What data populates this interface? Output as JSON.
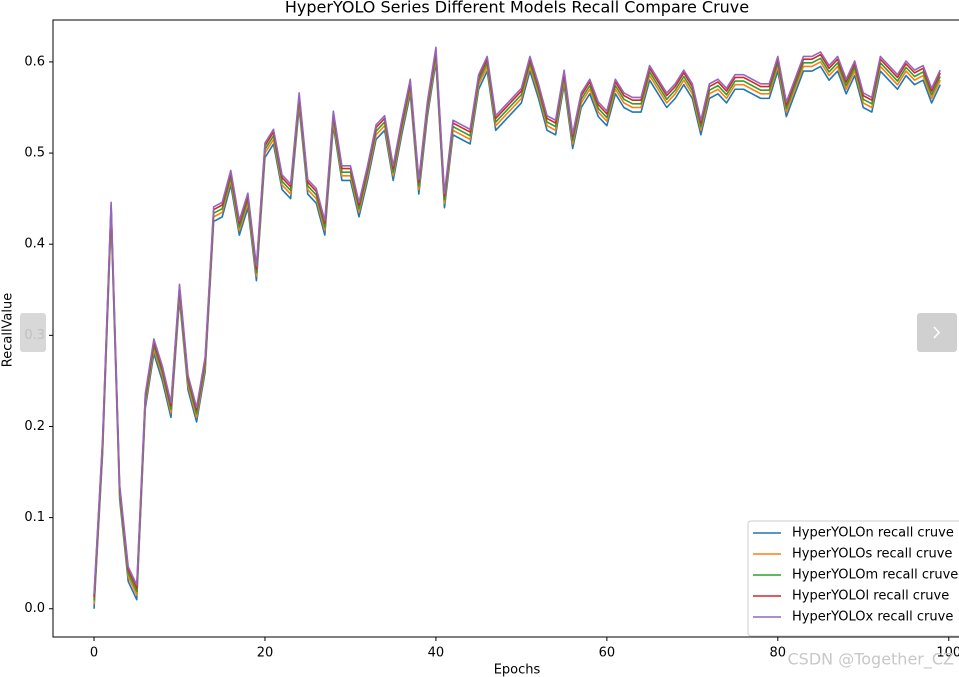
{
  "chart_data": {
    "type": "line",
    "title": "HyperYOLO Series Different Models Recall Compare Cruve",
    "x_label": "Epochs",
    "y_label": "RecallValue",
    "watermark": "CSDN @Together_CZ",
    "legend": "lower right",
    "xlim": [
      -4.8,
      101.2
    ],
    "ylim": [
      -0.031,
      0.646
    ],
    "xticks": [
      0,
      20,
      40,
      60,
      80,
      100
    ],
    "yticks": [
      {
        "value": 0,
        "label": "0.0"
      },
      0.1,
      0.2,
      0.3,
      0.4,
      0.5,
      0.6
    ],
    "x": [
      0,
      1,
      2,
      3,
      4,
      5,
      6,
      7,
      8,
      9,
      10,
      11,
      12,
      13,
      14,
      15,
      16,
      17,
      18,
      19,
      20,
      21,
      22,
      23,
      24,
      25,
      26,
      27,
      28,
      29,
      30,
      31,
      32,
      33,
      34,
      35,
      36,
      37,
      38,
      39,
      40,
      41,
      42,
      43,
      44,
      45,
      46,
      47,
      48,
      49,
      50,
      51,
      52,
      53,
      54,
      55,
      56,
      57,
      58,
      59,
      60,
      61,
      62,
      63,
      64,
      65,
      66,
      67,
      68,
      69,
      70,
      71,
      72,
      73,
      74,
      75,
      76,
      77,
      78,
      79,
      80,
      81,
      82,
      83,
      84,
      85,
      86,
      87,
      88,
      89,
      90,
      91,
      92,
      93,
      94,
      95,
      96,
      97,
      98,
      99
    ],
    "series": [
      {
        "name": "HyperYOLOn recall cruve",
        "color": "#1f77b4",
        "values": [
          0.0,
          0.17,
          0.43,
          0.12,
          0.03,
          0.01,
          0.22,
          0.28,
          0.25,
          0.21,
          0.34,
          0.24,
          0.205,
          0.26,
          0.425,
          0.43,
          0.465,
          0.41,
          0.44,
          0.36,
          0.495,
          0.51,
          0.46,
          0.45,
          0.55,
          0.455,
          0.445,
          0.41,
          0.53,
          0.47,
          0.47,
          0.43,
          0.47,
          0.515,
          0.525,
          0.47,
          0.52,
          0.565,
          0.455,
          0.54,
          0.6,
          0.44,
          0.52,
          0.515,
          0.51,
          0.57,
          0.59,
          0.525,
          0.535,
          0.545,
          0.555,
          0.59,
          0.56,
          0.525,
          0.52,
          0.575,
          0.505,
          0.55,
          0.565,
          0.54,
          0.53,
          0.565,
          0.55,
          0.545,
          0.545,
          0.58,
          0.565,
          0.55,
          0.56,
          0.575,
          0.56,
          0.52,
          0.56,
          0.565,
          0.555,
          0.57,
          0.57,
          0.565,
          0.56,
          0.56,
          0.59,
          0.54,
          0.565,
          0.59,
          0.59,
          0.595,
          0.58,
          0.59,
          0.565,
          0.585,
          0.55,
          0.545,
          0.59,
          0.58,
          0.57,
          0.585,
          0.575,
          0.58,
          0.555,
          0.575
        ]
      },
      {
        "name": "HyperYOLOs recall cruve",
        "color": "#ff7f0e",
        "values": [
          0.005,
          0.175,
          0.435,
          0.125,
          0.035,
          0.015,
          0.225,
          0.285,
          0.255,
          0.215,
          0.345,
          0.245,
          0.21,
          0.265,
          0.43,
          0.435,
          0.47,
          0.415,
          0.445,
          0.365,
          0.5,
          0.515,
          0.465,
          0.455,
          0.555,
          0.46,
          0.45,
          0.415,
          0.535,
          0.475,
          0.475,
          0.435,
          0.475,
          0.52,
          0.53,
          0.475,
          0.525,
          0.57,
          0.46,
          0.545,
          0.605,
          0.445,
          0.525,
          0.52,
          0.515,
          0.575,
          0.595,
          0.53,
          0.54,
          0.55,
          0.56,
          0.595,
          0.565,
          0.53,
          0.525,
          0.58,
          0.51,
          0.555,
          0.57,
          0.545,
          0.535,
          0.57,
          0.555,
          0.55,
          0.55,
          0.585,
          0.57,
          0.555,
          0.565,
          0.58,
          0.565,
          0.525,
          0.565,
          0.57,
          0.56,
          0.575,
          0.575,
          0.57,
          0.565,
          0.565,
          0.595,
          0.545,
          0.57,
          0.595,
          0.595,
          0.6,
          0.585,
          0.595,
          0.57,
          0.59,
          0.555,
          0.55,
          0.595,
          0.585,
          0.575,
          0.59,
          0.58,
          0.585,
          0.56,
          0.58
        ]
      },
      {
        "name": "HyperYOLOm recall cruve",
        "color": "#2ca02c",
        "values": [
          0.009,
          0.179,
          0.439,
          0.129,
          0.039,
          0.019,
          0.229,
          0.289,
          0.259,
          0.219,
          0.349,
          0.249,
          0.214,
          0.269,
          0.434,
          0.439,
          0.474,
          0.419,
          0.449,
          0.369,
          0.504,
          0.519,
          0.469,
          0.459,
          0.559,
          0.464,
          0.454,
          0.419,
          0.539,
          0.479,
          0.479,
          0.439,
          0.479,
          0.524,
          0.534,
          0.479,
          0.529,
          0.574,
          0.464,
          0.549,
          0.609,
          0.449,
          0.529,
          0.524,
          0.519,
          0.579,
          0.599,
          0.534,
          0.544,
          0.554,
          0.564,
          0.599,
          0.569,
          0.534,
          0.529,
          0.584,
          0.514,
          0.559,
          0.574,
          0.549,
          0.539,
          0.574,
          0.559,
          0.554,
          0.554,
          0.589,
          0.574,
          0.559,
          0.569,
          0.584,
          0.569,
          0.529,
          0.569,
          0.574,
          0.564,
          0.579,
          0.579,
          0.574,
          0.569,
          0.569,
          0.599,
          0.549,
          0.574,
          0.599,
          0.599,
          0.604,
          0.589,
          0.599,
          0.574,
          0.594,
          0.559,
          0.554,
          0.599,
          0.589,
          0.579,
          0.594,
          0.584,
          0.589,
          0.564,
          0.584
        ]
      },
      {
        "name": "HyperYOLOl recall cruve",
        "color": "#d62728",
        "values": [
          0.013,
          0.183,
          0.443,
          0.133,
          0.043,
          0.023,
          0.233,
          0.293,
          0.263,
          0.223,
          0.353,
          0.253,
          0.218,
          0.273,
          0.438,
          0.443,
          0.478,
          0.423,
          0.453,
          0.373,
          0.508,
          0.523,
          0.473,
          0.463,
          0.563,
          0.468,
          0.458,
          0.423,
          0.543,
          0.483,
          0.483,
          0.443,
          0.483,
          0.528,
          0.538,
          0.483,
          0.533,
          0.578,
          0.468,
          0.553,
          0.613,
          0.453,
          0.533,
          0.528,
          0.523,
          0.583,
          0.603,
          0.538,
          0.548,
          0.558,
          0.568,
          0.603,
          0.573,
          0.538,
          0.533,
          0.588,
          0.518,
          0.563,
          0.578,
          0.553,
          0.543,
          0.578,
          0.563,
          0.558,
          0.558,
          0.593,
          0.578,
          0.563,
          0.573,
          0.588,
          0.573,
          0.533,
          0.573,
          0.578,
          0.568,
          0.583,
          0.583,
          0.578,
          0.573,
          0.573,
          0.603,
          0.553,
          0.578,
          0.603,
          0.603,
          0.608,
          0.593,
          0.603,
          0.578,
          0.598,
          0.563,
          0.558,
          0.603,
          0.593,
          0.583,
          0.598,
          0.588,
          0.593,
          0.568,
          0.588
        ]
      },
      {
        "name": "HyperYOLOx recall cruve",
        "color": "#9467bd",
        "values": [
          0.016,
          0.186,
          0.446,
          0.136,
          0.046,
          0.026,
          0.236,
          0.296,
          0.266,
          0.226,
          0.356,
          0.256,
          0.221,
          0.276,
          0.441,
          0.446,
          0.481,
          0.426,
          0.456,
          0.376,
          0.511,
          0.526,
          0.476,
          0.466,
          0.566,
          0.471,
          0.461,
          0.426,
          0.546,
          0.486,
          0.486,
          0.446,
          0.486,
          0.531,
          0.541,
          0.486,
          0.536,
          0.581,
          0.471,
          0.556,
          0.616,
          0.456,
          0.536,
          0.531,
          0.526,
          0.586,
          0.606,
          0.541,
          0.551,
          0.561,
          0.571,
          0.606,
          0.576,
          0.541,
          0.536,
          0.591,
          0.521,
          0.566,
          0.581,
          0.556,
          0.546,
          0.581,
          0.566,
          0.561,
          0.561,
          0.596,
          0.581,
          0.566,
          0.576,
          0.591,
          0.576,
          0.536,
          0.576,
          0.581,
          0.571,
          0.586,
          0.586,
          0.581,
          0.576,
          0.576,
          0.606,
          0.556,
          0.581,
          0.606,
          0.606,
          0.611,
          0.596,
          0.606,
          0.581,
          0.601,
          0.566,
          0.561,
          0.606,
          0.596,
          0.586,
          0.601,
          0.591,
          0.596,
          0.571,
          0.591
        ]
      }
    ]
  }
}
